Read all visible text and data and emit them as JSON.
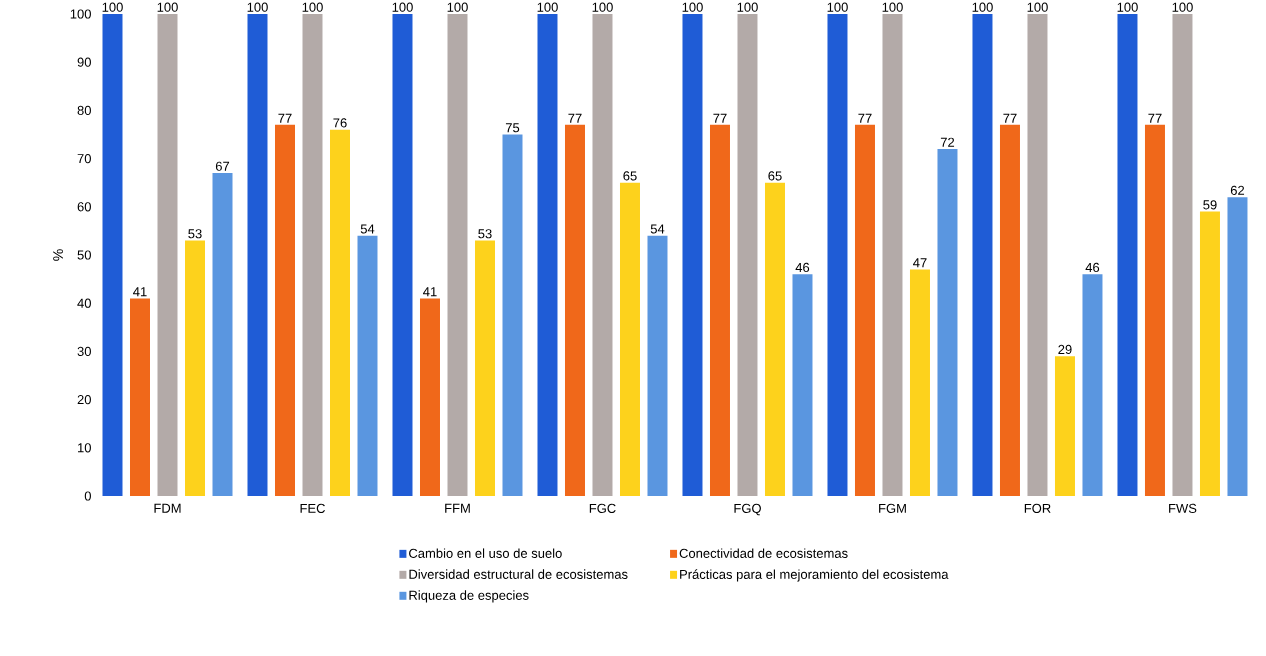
{
  "chart_data": {
    "type": "bar",
    "ylabel": "%",
    "categories": [
      "FDM",
      "FEC",
      "FFM",
      "FGC",
      "FGQ",
      "FGM",
      "FOR",
      "FWS"
    ],
    "series": [
      {
        "name": "Cambio en el uso de suelo",
        "color": "#1f5cd6",
        "values": [
          100,
          100,
          100,
          100,
          100,
          100,
          100,
          100
        ]
      },
      {
        "name": "Conectividad de ecosistemas",
        "color": "#f0681a",
        "values": [
          41,
          77,
          41,
          77,
          77,
          77,
          77,
          77
        ]
      },
      {
        "name": "Diversidad estructural de ecosistemas",
        "color": "#b3aaa8",
        "values": [
          100,
          100,
          100,
          100,
          100,
          100,
          100,
          100
        ]
      },
      {
        "name": "Prácticas para el mejoramiento del ecosistema",
        "color": "#fdd21c",
        "values": [
          53,
          76,
          53,
          65,
          65,
          47,
          29,
          59
        ]
      },
      {
        "name": "Riqueza de especies",
        "color": "#5a96e0",
        "values": [
          67,
          54,
          75,
          54,
          46,
          72,
          46,
          62
        ]
      }
    ],
    "ylim": [
      0,
      100
    ],
    "yticks": [
      0,
      10,
      20,
      30,
      40,
      50,
      60,
      70,
      80,
      90,
      100
    ],
    "data_labels": true,
    "grid": false,
    "legend": "bottom"
  }
}
